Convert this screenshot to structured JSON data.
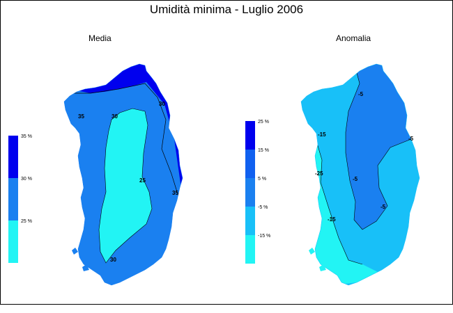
{
  "title": "Umidità minima - Luglio 2006",
  "panels": {
    "media": {
      "label": "Media",
      "legend": {
        "ticks": [
          "35 %",
          "30 %",
          "25 %"
        ],
        "colors": [
          "#0000ee",
          "#1a80f0",
          "#22f4f4"
        ]
      },
      "contour_labels": [
        "35",
        "30",
        "30",
        "25",
        "30",
        "35"
      ]
    },
    "anomalia": {
      "label": "Anomalia",
      "legend": {
        "ticks": [
          "25 %",
          "15 %",
          "5 %",
          "-5 %",
          "-15 %"
        ],
        "colors": [
          "#0000ee",
          "#1060f0",
          "#1a80f0",
          "#18c0f8",
          "#22f4f4"
        ]
      },
      "contour_labels": [
        "-5",
        "-5",
        "-15",
        "-5",
        "-5",
        "-15",
        "-25"
      ]
    }
  },
  "chart_data": [
    {
      "type": "heatmap",
      "title": "Media",
      "unit": "%",
      "levels": [
        25,
        30,
        35
      ],
      "contours": [
        25,
        30,
        35
      ]
    },
    {
      "type": "heatmap",
      "title": "Anomalia",
      "unit": "%",
      "levels": [
        -15,
        -5,
        5,
        15,
        25
      ],
      "contours": [
        -25,
        -15,
        -5
      ]
    }
  ]
}
